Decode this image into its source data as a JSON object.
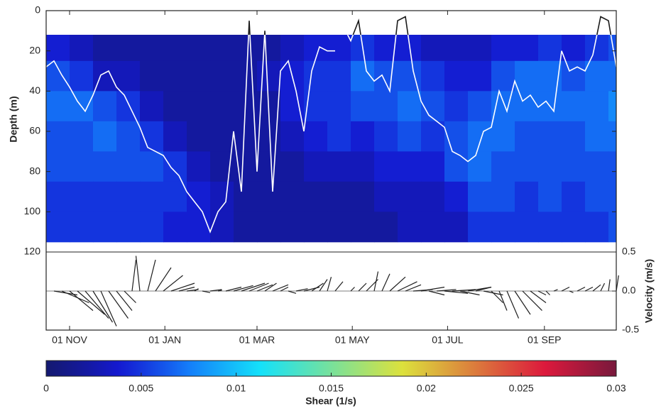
{
  "chart_data": [
    {
      "type": "heatmap",
      "y_label": "Depth (m)",
      "xlim": [
        -15,
        350
      ],
      "ylim": [
        0,
        120
      ],
      "yticks": [
        0,
        20,
        40,
        60,
        80,
        100,
        120
      ],
      "x_edges": [
        -15,
        0,
        15,
        30,
        45,
        60,
        75,
        90,
        105,
        120,
        135,
        150,
        165,
        180,
        195,
        210,
        225,
        240,
        255,
        270,
        285,
        300,
        315,
        330,
        345,
        350
      ],
      "depth_edges": [
        12,
        25,
        40,
        55,
        70,
        85,
        100,
        115
      ],
      "values": [
        [
          0.004,
          0.003,
          0.002,
          0.002,
          0.002,
          0.002,
          0.002,
          0.002,
          0.002,
          0.002,
          0.003,
          0.004,
          0.004,
          0.005,
          0.004,
          0.004,
          0.003,
          0.003,
          0.003,
          0.004,
          0.004,
          0.005,
          0.004,
          0.005,
          0.006
        ],
        [
          0.006,
          0.005,
          0.003,
          0.003,
          0.002,
          0.002,
          0.002,
          0.002,
          0.002,
          0.003,
          0.004,
          0.005,
          0.005,
          0.007,
          0.006,
          0.006,
          0.005,
          0.004,
          0.004,
          0.006,
          0.007,
          0.007,
          0.006,
          0.007,
          0.007
        ],
        [
          0.007,
          0.007,
          0.006,
          0.005,
          0.003,
          0.002,
          0.002,
          0.002,
          0.002,
          0.002,
          0.004,
          0.005,
          0.005,
          0.006,
          0.006,
          0.007,
          0.006,
          0.005,
          0.006,
          0.007,
          0.007,
          0.007,
          0.007,
          0.007,
          0.008
        ],
        [
          0.006,
          0.006,
          0.007,
          0.006,
          0.005,
          0.003,
          0.002,
          0.002,
          0.002,
          0.002,
          0.003,
          0.004,
          0.005,
          0.004,
          0.005,
          0.006,
          0.005,
          0.006,
          0.007,
          0.007,
          0.006,
          0.006,
          0.006,
          0.007,
          0.007
        ],
        [
          0.006,
          0.006,
          0.006,
          0.006,
          0.006,
          0.005,
          0.003,
          0.002,
          0.002,
          0.002,
          0.002,
          0.003,
          0.003,
          0.003,
          0.004,
          0.004,
          0.004,
          0.006,
          0.007,
          0.006,
          0.006,
          0.006,
          0.006,
          0.006,
          0.006
        ],
        [
          0.005,
          0.005,
          0.005,
          0.005,
          0.005,
          0.005,
          0.004,
          0.003,
          0.002,
          0.002,
          0.002,
          0.002,
          0.002,
          0.002,
          0.003,
          0.003,
          0.003,
          0.004,
          0.006,
          0.006,
          0.005,
          0.006,
          0.005,
          0.006,
          0.006
        ],
        [
          0.005,
          0.005,
          0.005,
          0.005,
          0.005,
          0.004,
          0.004,
          0.003,
          0.002,
          0.002,
          0.002,
          0.002,
          0.002,
          0.002,
          0.002,
          0.003,
          0.003,
          0.003,
          0.005,
          0.005,
          0.005,
          0.005,
          0.005,
          0.005,
          0.006
        ]
      ],
      "clim": [
        0,
        0.03
      ],
      "colormap": "jet",
      "colorbar_label": "Shear (1/s)",
      "colorbar_ticks": [
        0,
        0.005,
        0.01,
        0.015,
        0.02,
        0.025,
        0.03
      ],
      "line": {
        "color": "#ffffff",
        "surface_color": "#1a1a1a",
        "x": [
          -15,
          -10,
          -5,
          0,
          5,
          10,
          15,
          20,
          25,
          30,
          35,
          40,
          45,
          50,
          55,
          60,
          65,
          70,
          75,
          80,
          85,
          90,
          95,
          100,
          105,
          110,
          115,
          120,
          125,
          130,
          135,
          140,
          145,
          150,
          155,
          160,
          165,
          170,
          175,
          178,
          180,
          185,
          190,
          195,
          200,
          205,
          210,
          215,
          220,
          225,
          230,
          235,
          240,
          245,
          250,
          255,
          260,
          265,
          270,
          275,
          280,
          285,
          290,
          295,
          300,
          305,
          310,
          315,
          320,
          325,
          330,
          335,
          340,
          345,
          350
        ],
        "y": [
          28,
          25,
          32,
          38,
          45,
          50,
          42,
          32,
          30,
          38,
          42,
          50,
          58,
          68,
          70,
          72,
          78,
          82,
          90,
          95,
          100,
          110,
          100,
          95,
          60,
          90,
          5,
          80,
          10,
          90,
          30,
          25,
          40,
          60,
          30,
          18,
          20,
          20,
          null,
          12,
          15,
          5,
          30,
          35,
          32,
          40,
          5,
          3,
          30,
          45,
          52,
          55,
          58,
          70,
          72,
          75,
          72,
          60,
          58,
          40,
          50,
          35,
          45,
          42,
          48,
          45,
          50,
          20,
          30,
          28,
          30,
          22,
          3,
          5,
          28
        ]
      }
    },
    {
      "type": "stick",
      "y2_label": "Velocity (m/s)",
      "xlim": [
        -15,
        350
      ],
      "xticks": [
        {
          "value": 0,
          "label": "01 NOV"
        },
        {
          "value": 61,
          "label": "01 JAN"
        },
        {
          "value": 120,
          "label": "01 MAR"
        },
        {
          "value": 181,
          "label": "01 MAY"
        },
        {
          "value": 242,
          "label": "01 JUL"
        },
        {
          "value": 304,
          "label": "01 SEP"
        }
      ],
      "y2lim": [
        -0.5,
        0.5
      ],
      "y2ticks": [
        0.5,
        {
          "value": 0,
          "label": "0.0"
        },
        -0.5
      ],
      "color": "#1e1e1e",
      "x": [
        -10,
        -5,
        0,
        5,
        10,
        15,
        20,
        25,
        30,
        35,
        40,
        45,
        50,
        55,
        60,
        65,
        70,
        75,
        80,
        85,
        90,
        95,
        100,
        105,
        110,
        115,
        120,
        125,
        130,
        135,
        140,
        145,
        150,
        155,
        160,
        165,
        170,
        180,
        185,
        190,
        195,
        200,
        205,
        210,
        215,
        220,
        225,
        230,
        235,
        240,
        245,
        250,
        255,
        260,
        265,
        270,
        275,
        280,
        285,
        290,
        295,
        300,
        305,
        310,
        315,
        320,
        325,
        330,
        335,
        340,
        345,
        350
      ],
      "u": [
        0.3,
        0.35,
        0.3,
        0.35,
        0.3,
        0.25,
        0.2,
        0.25,
        0.2,
        0.15,
        0.05,
        -0.05,
        0.1,
        0.2,
        0.25,
        0.3,
        0.2,
        0.15,
        0.05,
        0.1,
        0.15,
        0.05,
        0.2,
        0.25,
        0.3,
        0.25,
        0.2,
        0.15,
        0.2,
        0.1,
        0.1,
        0.15,
        0.2,
        0.15,
        0.1,
        0.05,
        0.1,
        0.05,
        0.1,
        0.15,
        0.05,
        0.1,
        0.2,
        0.25,
        0.2,
        0.25,
        0.3,
        0.2,
        0.25,
        0.3,
        0.3,
        0.25,
        0.3,
        0.2,
        0.25,
        0.15,
        0.1,
        0.15,
        0.2,
        0.25,
        0.2,
        0.1,
        0.05,
        0.05,
        0.1,
        0.05,
        0.1,
        0.1,
        0.1,
        0.05,
        0.02,
        0.03
      ],
      "v": [
        -0.05,
        -0.15,
        -0.25,
        -0.3,
        -0.35,
        -0.4,
        -0.45,
        -0.35,
        -0.25,
        -0.15,
        0.4,
        0.45,
        0.4,
        0.3,
        0.2,
        0.1,
        0.05,
        0.02,
        0.03,
        -0.02,
        0.02,
        0.01,
        0.05,
        0.07,
        0.1,
        0.1,
        0.08,
        0.1,
        0.08,
        0.05,
        -0.03,
        0.03,
        0.05,
        0.1,
        0.15,
        0.18,
        0.12,
        0.05,
        0.1,
        0.15,
        0.25,
        0.22,
        0.18,
        0.12,
        0.08,
        0.02,
        0.05,
        -0.05,
        0.02,
        -0.03,
        0.02,
        -0.05,
        0.05,
        0.05,
        -0.05,
        -0.15,
        -0.25,
        -0.35,
        -0.3,
        -0.25,
        -0.15,
        -0.05,
        -0.05,
        0.02,
        0.05,
        -0.02,
        0.05,
        0.05,
        0.08,
        0.1,
        0.15,
        0.2
      ]
    }
  ]
}
